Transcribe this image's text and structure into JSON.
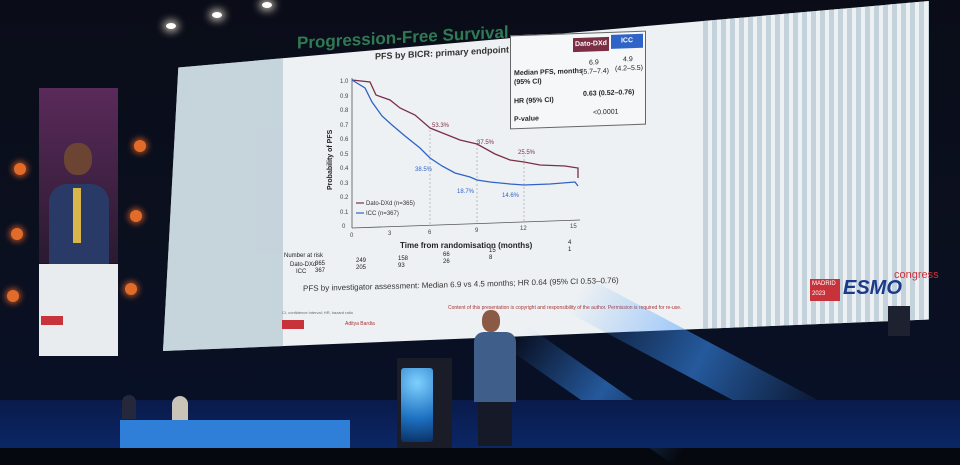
{
  "slide": {
    "title": "Progression-Free Survival",
    "subtitle": "PFS by BICR: primary endpoint",
    "table": {
      "col1": "Dato-DXd",
      "col2": "ICC",
      "median_label": "Median PFS, months",
      "ci_label": "(95% CI)",
      "median_1": "6.9",
      "median_1_ci": "(5.7–7.4)",
      "median_2": "4.9",
      "median_2_ci": "(4.2–5.5)",
      "hr_label": "HR (95% CI)",
      "hr_value": "0.63 (0.52–0.76)",
      "p_label": "P-value",
      "p_value": "<0.0001"
    },
    "ylabel": "Probability of PFS",
    "xlabel": "Time from randomisation (months)",
    "y_ticks": [
      "1.0",
      "0.9",
      "0.8",
      "0.7",
      "0.6",
      "0.5",
      "0.4",
      "0.3",
      "0.2",
      "0.1",
      "0"
    ],
    "x_ticks": [
      "0",
      "3",
      "6",
      "9",
      "12",
      "15"
    ],
    "annotations": [
      "53.3%",
      "37.5%",
      "25.5%",
      "38.5%",
      "18.7%",
      "14.6%"
    ],
    "legend": [
      "Dato-DXd (n=365)",
      "ICC (n=367)"
    ],
    "at_risk_label": "Number at risk",
    "at_risk_rows": [
      {
        "name": "Dato-DXd",
        "values": [
          "365",
          "249",
          "158",
          "66",
          "15",
          "4"
        ]
      },
      {
        "name": "ICC",
        "values": [
          "367",
          "205",
          "93",
          "26",
          "8",
          "1"
        ]
      }
    ],
    "investigator": "PFS by investigator assessment: Median 6.9 vs 4.5 months; HR 0.64 (95% CI 0.53–0.76)",
    "footer_name": "Aditya Bardia",
    "footer_copyright": "Content of this presentation is copyright and responsibility of the author. Permission is required for re-use.",
    "ci_note": "CI, confidence interval; HR, hazard ratio"
  },
  "branding": {
    "city": "MADRID",
    "year": "2023",
    "brand": "ESMO",
    "congress": "congress"
  },
  "colors": {
    "dato": "#7a2f45",
    "icc": "#2f63c7",
    "accent": "#2f7a55"
  }
}
